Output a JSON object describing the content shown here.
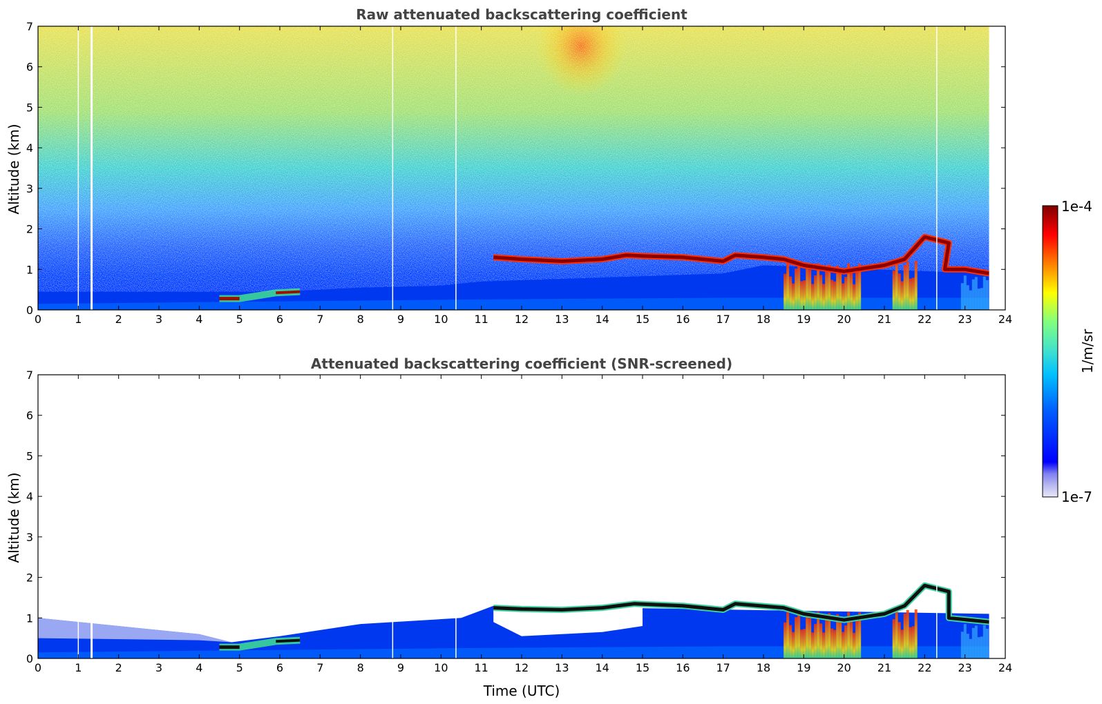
{
  "chart_data": [
    {
      "type": "heatmap",
      "title": "Raw attenuated backscattering coefficient",
      "xlabel": "",
      "ylabel": "Altitude (km)",
      "xlim": [
        0,
        24
      ],
      "ylim": [
        0,
        7
      ],
      "x_ticks": [
        "0",
        "1",
        "2",
        "3",
        "4",
        "5",
        "6",
        "7",
        "8",
        "9",
        "10",
        "11",
        "12",
        "13",
        "14",
        "15",
        "16",
        "17",
        "18",
        "19",
        "20",
        "21",
        "22",
        "23",
        "24"
      ],
      "y_ticks": [
        "0",
        "1",
        "2",
        "3",
        "4",
        "5",
        "6",
        "7"
      ],
      "data_end_time": 23.6,
      "gaps_time": [
        1.0,
        1.33,
        8.8,
        10.37,
        22.3
      ],
      "noise_background": "speckled noise increasing with altitude; yellow-red maximum around 11.3-14.5 UTC above 3 km",
      "features": [
        {
          "kind": "boundary_layer",
          "points": [
            [
              0,
              0.45
            ],
            [
              4,
              0.45
            ],
            [
              6,
              0.45
            ],
            [
              8,
              0.55
            ],
            [
              10,
              0.6
            ],
            [
              11,
              0.7
            ],
            [
              17,
              0.9
            ],
            [
              18,
              1.1
            ],
            [
              23.6,
              0.9
            ]
          ]
        },
        {
          "kind": "aerosol_layer",
          "points": [
            [
              4.5,
              0.28
            ],
            [
              5.0,
              0.28
            ],
            [
              5.9,
              0.42
            ],
            [
              6.5,
              0.45
            ]
          ]
        },
        {
          "kind": "cloud_top_line",
          "points": [
            [
              11.3,
              1.3
            ],
            [
              12,
              1.25
            ],
            [
              13,
              1.2
            ],
            [
              14,
              1.25
            ],
            [
              14.6,
              1.35
            ],
            [
              15,
              1.33
            ],
            [
              16,
              1.3
            ],
            [
              17,
              1.2
            ],
            [
              17.3,
              1.35
            ],
            [
              18,
              1.3
            ],
            [
              18.5,
              1.25
            ],
            [
              19,
              1.1
            ],
            [
              20,
              0.95
            ],
            [
              21,
              1.1
            ],
            [
              21.5,
              1.25
            ],
            [
              22,
              1.8
            ],
            [
              22.6,
              1.65
            ],
            [
              22.5,
              1.0
            ],
            [
              23,
              1.0
            ],
            [
              23.6,
              0.9
            ]
          ]
        },
        {
          "kind": "precipitation_curtain",
          "points": [
            [
              18.5,
              0
            ],
            [
              20.4,
              0
            ],
            [
              21.3,
              0
            ],
            [
              21.7,
              0
            ]
          ]
        }
      ]
    },
    {
      "type": "heatmap",
      "title": "Attenuated backscattering coefficient (SNR-screened)",
      "xlabel": "Time (UTC)",
      "ylabel": "Altitude (km)",
      "xlim": [
        0,
        24
      ],
      "ylim": [
        0,
        7
      ],
      "x_ticks": [
        "0",
        "1",
        "2",
        "3",
        "4",
        "5",
        "6",
        "7",
        "8",
        "9",
        "10",
        "11",
        "12",
        "13",
        "14",
        "15",
        "16",
        "17",
        "18",
        "19",
        "20",
        "21",
        "22",
        "23",
        "24"
      ],
      "y_ticks": [
        "0",
        "1",
        "2",
        "3",
        "4",
        "5",
        "6",
        "7"
      ],
      "data_end_time": 23.6,
      "gaps_time": [
        1.0,
        1.33,
        8.8,
        10.37,
        22.3
      ],
      "masked_region_above_km": [
        [
          0,
          1.0
        ],
        [
          4,
          0.6
        ],
        [
          4.8,
          0.4
        ],
        [
          6,
          0.55
        ],
        [
          8,
          0.85
        ],
        [
          10.5,
          1.0
        ],
        [
          11.3,
          1.3
        ],
        [
          23.6,
          1.1
        ]
      ],
      "features": [
        {
          "kind": "cloud_top_line",
          "points": [
            [
              11.3,
              1.25
            ],
            [
              12,
              1.22
            ],
            [
              13,
              1.2
            ],
            [
              14,
              1.25
            ],
            [
              14.8,
              1.35
            ],
            [
              16,
              1.3
            ],
            [
              17,
              1.2
            ],
            [
              17.3,
              1.35
            ],
            [
              18.5,
              1.25
            ],
            [
              19,
              1.1
            ],
            [
              20,
              0.95
            ],
            [
              21,
              1.1
            ],
            [
              21.5,
              1.3
            ],
            [
              22,
              1.8
            ],
            [
              22.6,
              1.65
            ],
            [
              22.6,
              1.0
            ],
            [
              23.6,
              0.9
            ]
          ]
        },
        {
          "kind": "screened_hole_under_cloud",
          "points": [
            [
              11.3,
              0.9
            ],
            [
              12,
              0.55
            ],
            [
              13,
              0.6
            ],
            [
              14,
              0.65
            ],
            [
              15,
              0.8
            ]
          ]
        },
        {
          "kind": "aerosol_layer",
          "points": [
            [
              4.5,
              0.28
            ],
            [
              5.0,
              0.28
            ],
            [
              5.9,
              0.42
            ],
            [
              6.5,
              0.45
            ]
          ]
        }
      ]
    }
  ],
  "colorbar": {
    "label": "1/m/sr",
    "max_label": "1e-4",
    "min_label": "1e-7",
    "scale": "log",
    "colors": [
      "#e8e8f8",
      "#b8b8f0",
      "#8080f0",
      "#0000ff",
      "#0060ff",
      "#00c0ff",
      "#40e0d0",
      "#80ff80",
      "#ffff00",
      "#ff8000",
      "#ff0000",
      "#7f0000"
    ]
  }
}
